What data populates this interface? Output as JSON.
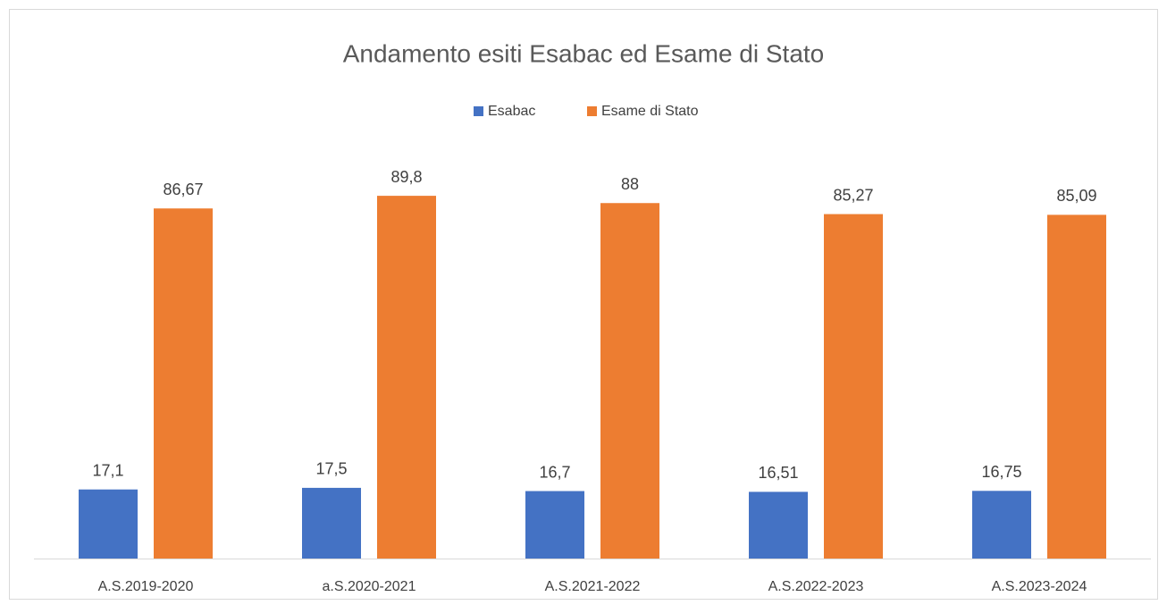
{
  "chart_data": {
    "type": "bar",
    "title": "Andamento esiti Esabac ed Esame di Stato",
    "categories": [
      "A.S.2019-2020",
      "a.S.2020-2021",
      "A.S.2021-2022",
      "A.S.2022-2023",
      "A.S.2023-2024"
    ],
    "series": [
      {
        "name": "Esabac",
        "color": "#4472c4",
        "values": [
          17.1,
          17.5,
          16.7,
          16.51,
          16.75
        ],
        "value_labels": [
          "17,1",
          "17,5",
          "16,7",
          "16,51",
          "16,75"
        ]
      },
      {
        "name": "Esame di Stato",
        "color": "#ed7d31",
        "values": [
          86.67,
          89.8,
          88,
          85.27,
          85.09
        ],
        "value_labels": [
          "86,67",
          "89,8",
          "88",
          "85,27",
          "85,09"
        ]
      }
    ],
    "ylim": [
      0,
      100
    ],
    "legend": "top"
  }
}
